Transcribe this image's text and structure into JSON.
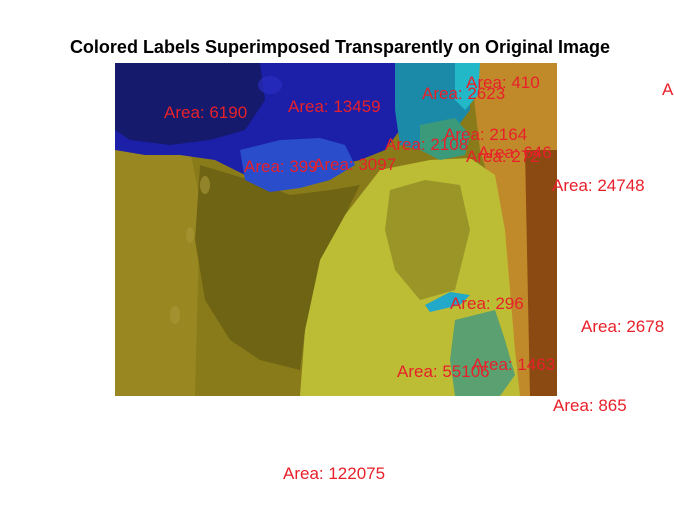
{
  "title": "Colored Labels Superimposed Transparently on Original Image",
  "colors": {
    "label_text": "#e8202a",
    "region_olive": "#8a7b1a",
    "region_yellow": "#bcbc35",
    "region_blue": "#1c1fa8",
    "region_dark_blue": "#151a6c",
    "region_royal_blue": "#2a4dcc",
    "region_teal": "#1a8aa8",
    "region_orange": "#c08a2a",
    "region_brown": "#8a4a12",
    "region_green": "#5aa070",
    "region_cyan": "#22a8c8"
  },
  "area_labels": [
    {
      "text": "Area: 410"
    },
    {
      "text": "Area: 2623"
    },
    {
      "text": "A"
    },
    {
      "text": "Area: 6190"
    },
    {
      "text": "Area: 13459"
    },
    {
      "text": "Area: 2164"
    },
    {
      "text": "Area: 2108"
    },
    {
      "text": "Area: 272"
    },
    {
      "text": "Area: 646"
    },
    {
      "text": "Area: 399"
    },
    {
      "text": "Area: 3097"
    },
    {
      "text": "Area: 24748"
    },
    {
      "text": "Area: 296"
    },
    {
      "text": "Area: 2678"
    },
    {
      "text": "Area: 1463"
    },
    {
      "text": "Area: 55106"
    },
    {
      "text": "Area: 865"
    },
    {
      "text": "Area: 122075"
    }
  ]
}
